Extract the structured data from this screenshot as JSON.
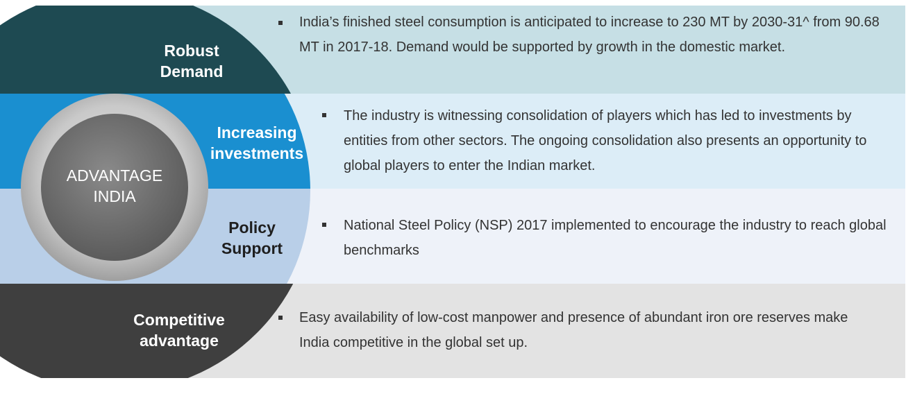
{
  "center": {
    "line1": "ADVANTAGE",
    "line2": "INDIA"
  },
  "rows": [
    {
      "label_line1": "Robust",
      "label_line2": "Demand",
      "description": "India’s finished steel consumption is anticipated to increase to 230 MT by 2030-31^ from 90.68 MT in 2017-18. Demand would be supported by growth in the domestic market."
    },
    {
      "label_line1": "Increasing",
      "label_line2": "investments",
      "description": "The industry is witnessing consolidation of players which has led to investments by entities from other sectors. The ongoing consolidation also presents an opportunity to global players to enter the Indian market."
    },
    {
      "label_line1": "Policy",
      "label_line2": "Support",
      "description": "National Steel Policy (NSP) 2017 implemented to encourage the industry to reach global benchmarks"
    },
    {
      "label_line1": "Competitive",
      "label_line2": "advantage",
      "description": "Easy availability of low-cost manpower and presence of abundant iron ore reserves make India competitive in the global set up."
    }
  ],
  "colors": {
    "row1_label": "#1e4a52",
    "row1_bg": "#c6dfe5",
    "row2_label": "#1a8fd0",
    "row2_bg": "#dcedf7",
    "row3_label": "#b9cfe8",
    "row3_bg": "#eef2f9",
    "row4_label": "#3f3f3f",
    "row4_bg": "#e3e3e3",
    "ring": "#bdbdbd",
    "center": "#6f6f6f"
  }
}
